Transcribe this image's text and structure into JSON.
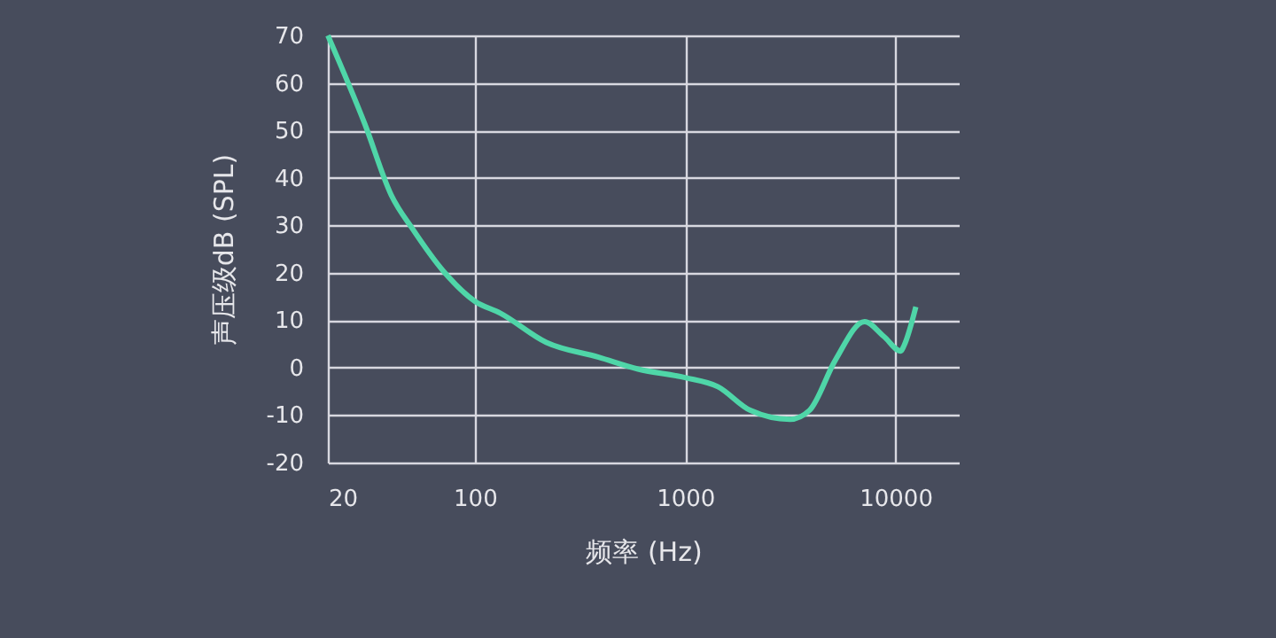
{
  "chart_data": {
    "type": "line",
    "xlabel": "频率 (Hz)",
    "ylabel": "声压级dB (SPL)",
    "x": [
      20,
      30,
      40,
      51,
      71,
      100,
      132,
      219,
      388,
      597,
      1000,
      1430,
      2040,
      3150,
      3900,
      5180,
      7130,
      8790,
      10600,
      11000,
      12500
    ],
    "series": [
      {
        "color": "#4fd6a8",
        "values": [
          70,
          51.3,
          36.4,
          29,
          20.3,
          14,
          11.5,
          5.3,
          2.2,
          -0.3,
          -2.1,
          -4,
          -9,
          -10.9,
          -9,
          1.6,
          9.7,
          6.6,
          3.5,
          4.7,
          12.8
        ]
      }
    ],
    "xlim": [
      20,
      20000
    ],
    "xticks": [
      20,
      100,
      1000,
      10000
    ],
    "ylim": [
      -20,
      70
    ],
    "yticks": [
      -20,
      -10,
      0,
      10,
      20,
      30,
      40,
      50,
      60,
      70
    ],
    "log": "x",
    "grid": true,
    "line_style": "solid",
    "marker": "none"
  }
}
